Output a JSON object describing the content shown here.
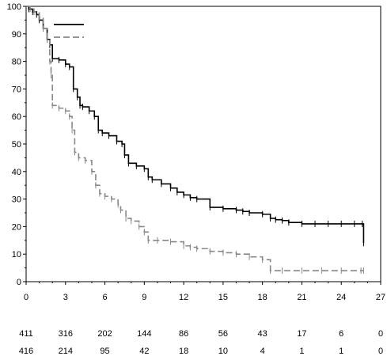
{
  "chart_data": {
    "type": "line",
    "title": "",
    "xlabel": "",
    "ylabel": "",
    "xlim": [
      0,
      27
    ],
    "ylim": [
      0,
      100
    ],
    "x_ticks": [
      0,
      3,
      6,
      9,
      12,
      15,
      18,
      21,
      24,
      27
    ],
    "y_ticks": [
      0,
      10,
      20,
      30,
      40,
      50,
      60,
      70,
      80,
      90,
      100
    ],
    "grid": false,
    "legend": {
      "placement": "top-left",
      "entries": [
        {
          "name": "",
          "color": "#000000",
          "style": "solid"
        },
        {
          "name": "",
          "color": "#888888",
          "style": "dashed"
        }
      ]
    },
    "series": [
      {
        "name": "",
        "color": "#000000",
        "style": "solid",
        "x": [
          0,
          0.2,
          0.5,
          0.8,
          1.0,
          1.3,
          1.6,
          1.8,
          2.0,
          2.5,
          3.0,
          3.3,
          3.6,
          3.9,
          4.1,
          4.3,
          4.8,
          5.2,
          5.5,
          5.8,
          6.3,
          6.9,
          7.3,
          7.5,
          7.8,
          8.4,
          9.0,
          9.3,
          9.6,
          10.3,
          11.0,
          11.5,
          12.0,
          12.5,
          13.0,
          14.0,
          15.0,
          16.0,
          16.5,
          17.0,
          18.0,
          18.6,
          19.0,
          19.5,
          20.0,
          21.0,
          22.0,
          23.0,
          24.0,
          25.0,
          25.6,
          25.7
        ],
        "y": [
          100,
          99,
          98,
          97,
          95,
          92,
          88,
          86,
          81,
          80.5,
          79,
          78,
          70,
          67,
          64,
          63.5,
          62,
          60,
          55,
          54,
          53,
          51,
          50,
          46,
          43,
          42,
          41,
          38,
          37,
          35.5,
          34,
          32.5,
          31.5,
          30.5,
          30,
          27,
          26.5,
          26,
          25.5,
          25,
          24.5,
          23,
          22.5,
          22.2,
          21.5,
          21,
          21,
          21,
          21,
          21,
          21,
          14
        ]
      },
      {
        "name": "",
        "color": "#888888",
        "style": "dashed",
        "x": [
          0,
          0.3,
          0.6,
          1.0,
          1.3,
          1.6,
          1.8,
          1.9,
          2.0,
          2.5,
          3.0,
          3.3,
          3.5,
          3.7,
          4.0,
          4.5,
          5.0,
          5.3,
          5.6,
          6.0,
          6.5,
          7.0,
          7.2,
          7.6,
          8.0,
          8.6,
          9.0,
          9.3,
          10.0,
          11.0,
          12.0,
          12.5,
          13.0,
          14.0,
          15.0,
          16.0,
          17.0,
          18.0,
          18.6,
          19.5,
          21.0,
          22.5,
          24.0,
          25.5,
          25.7
        ],
        "y": [
          100,
          99,
          98,
          96,
          92,
          88,
          80,
          75,
          64,
          63,
          62,
          60,
          55,
          47,
          45,
          44,
          40,
          35,
          32,
          31,
          30,
          28,
          26,
          23,
          22,
          20,
          18,
          15,
          15,
          14.5,
          13,
          12.5,
          12,
          11,
          10.5,
          10,
          9,
          8,
          4,
          4,
          4,
          4,
          4,
          4,
          4
        ]
      }
    ],
    "risk_table": {
      "time_points": [
        0,
        3,
        6,
        9,
        12,
        15,
        18,
        21,
        24,
        27
      ],
      "rows": [
        {
          "name": "",
          "values": [
            411,
            316,
            202,
            144,
            86,
            56,
            43,
            17,
            6,
            0
          ]
        },
        {
          "name": "",
          "values": [
            416,
            214,
            95,
            42,
            18,
            10,
            4,
            1,
            1,
            0
          ]
        }
      ]
    }
  }
}
